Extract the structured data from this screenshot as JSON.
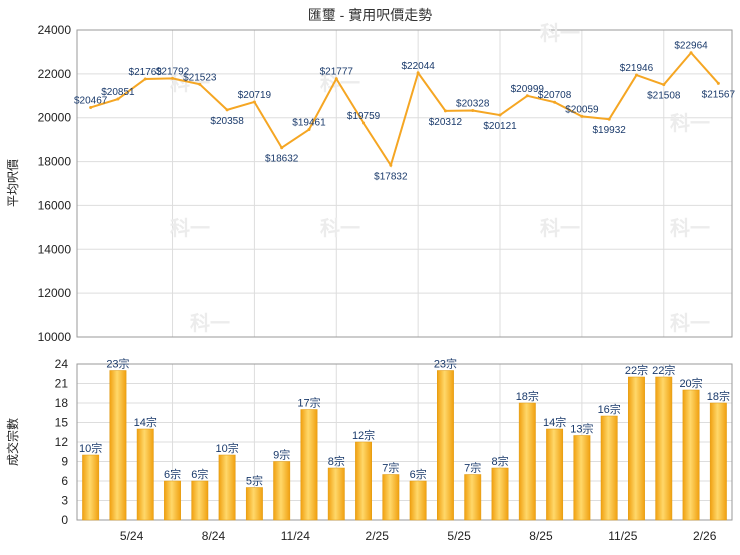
{
  "chart_data": [
    {
      "type": "line",
      "title": "匯璽 - 實用呎價走勢",
      "ylabel": "平均呎價",
      "ylim": [
        10000,
        24000
      ],
      "yticks": [
        10000,
        12000,
        14000,
        16000,
        18000,
        20000,
        22000,
        24000
      ],
      "grid": true,
      "color": "#f5a623",
      "watermark": "科一",
      "series": [
        {
          "values": [
            20467,
            20851,
            21763,
            21792,
            21523,
            20358,
            20719,
            18632,
            19461,
            21777,
            19759,
            17832,
            22044,
            20312,
            20328,
            20121,
            20999,
            20708,
            20059,
            19932,
            21946,
            21508,
            22964,
            21567
          ],
          "labels": [
            "$20467",
            "$20851",
            "$21763",
            "$21792",
            "$21523",
            "$20358",
            "$20719",
            "$18632",
            "$19461",
            "$21777",
            "$19759",
            "$17832",
            "$22044",
            "$20312",
            "$20328",
            "$20121",
            "$20999",
            "$20708",
            "$20059",
            "$19932",
            "$21946",
            "$21508",
            "$22964",
            "$21567"
          ]
        }
      ]
    },
    {
      "type": "bar",
      "ylabel": "成交宗數",
      "ylim": [
        0,
        24
      ],
      "yticks": [
        0,
        3,
        6,
        9,
        12,
        15,
        18,
        21,
        24
      ],
      "grid": true,
      "color": "#f5b21f",
      "xticks": [
        "5/24",
        "8/24",
        "11/24",
        "2/25",
        "5/25",
        "8/25",
        "11/25",
        "2/26"
      ],
      "series": [
        {
          "values": [
            10,
            23,
            14,
            6,
            6,
            10,
            5,
            9,
            17,
            8,
            12,
            7,
            6,
            23,
            7,
            8,
            18,
            14,
            13,
            16,
            22,
            22,
            20,
            18
          ],
          "labels": [
            "10宗",
            "23宗",
            "14宗",
            "6宗",
            "6宗",
            "10宗",
            "5宗",
            "9宗",
            "17宗",
            "8宗",
            "12宗",
            "7宗",
            "6宗",
            "23宗",
            "7宗",
            "8宗",
            "18宗",
            "14宗",
            "13宗",
            "16宗",
            "22宗",
            "22宗",
            "20宗",
            "18宗"
          ]
        }
      ]
    }
  ]
}
